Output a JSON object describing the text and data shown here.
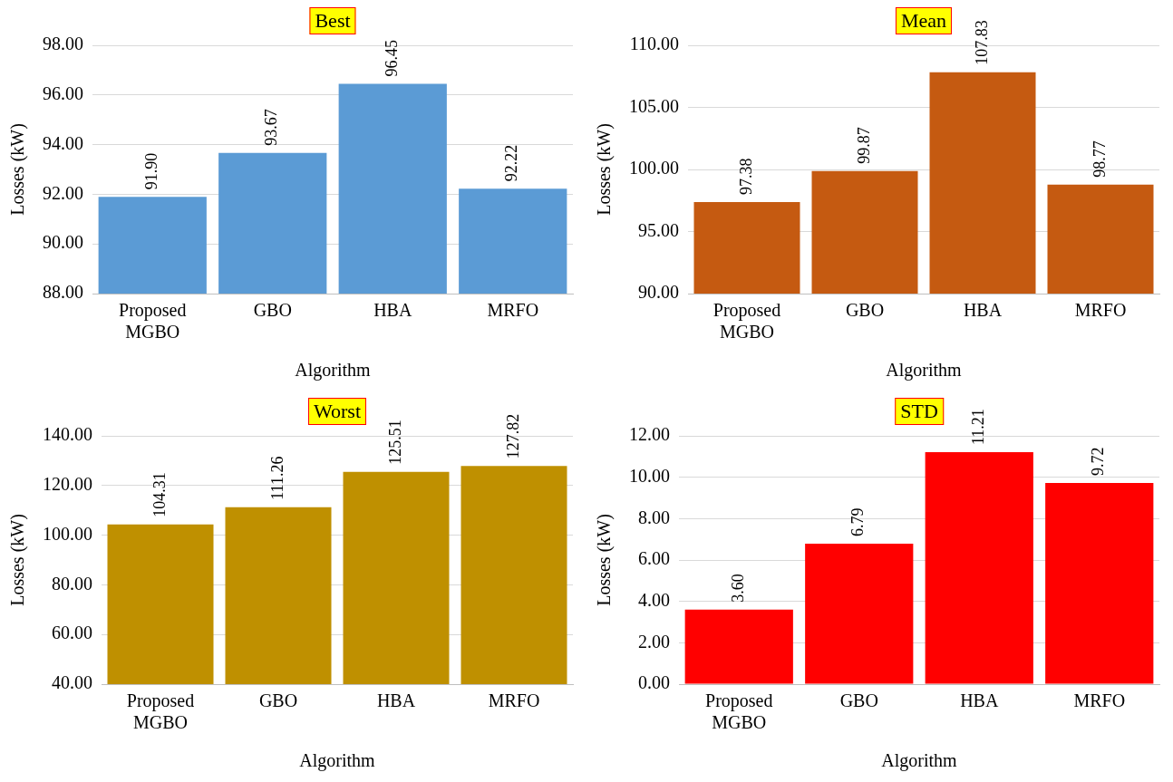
{
  "chart_data": [
    {
      "type": "bar",
      "title": "Best",
      "xlabel": "Algorithm",
      "ylabel": "Losses (kW)",
      "categories": [
        "Proposed MGBO",
        "GBO",
        "HBA",
        "MRFO"
      ],
      "values": [
        91.9,
        93.67,
        96.45,
        92.22
      ],
      "value_labels": [
        "91.90",
        "93.67",
        "96.45",
        "92.22"
      ],
      "color": "#5b9bd5",
      "ylim": [
        88,
        98
      ],
      "yticks": [
        {
          "value": 88,
          "label": "88.00"
        },
        {
          "value": 90,
          "label": "90.00"
        },
        {
          "value": 92,
          "label": "92.00"
        },
        {
          "value": 94,
          "label": "94.00"
        },
        {
          "value": 96,
          "label": "96.00"
        },
        {
          "value": 98,
          "label": "98.00"
        }
      ],
      "grid": "y",
      "legend": false
    },
    {
      "type": "bar",
      "title": "Mean",
      "xlabel": "Algorithm",
      "ylabel": "Losses (kW)",
      "categories": [
        "Proposed MGBO",
        "GBO",
        "HBA",
        "MRFO"
      ],
      "values": [
        97.38,
        99.87,
        107.83,
        98.77
      ],
      "value_labels": [
        "97.38",
        "99.87",
        "107.83",
        "98.77"
      ],
      "color": "#c55a11",
      "ylim": [
        90,
        110
      ],
      "yticks": [
        {
          "value": 90,
          "label": "90.00"
        },
        {
          "value": 95,
          "label": "95.00"
        },
        {
          "value": 100,
          "label": "100.00"
        },
        {
          "value": 105,
          "label": "105.00"
        },
        {
          "value": 110,
          "label": "110.00"
        }
      ],
      "grid": "y",
      "legend": false
    },
    {
      "type": "bar",
      "title": "Worst",
      "xlabel": "Algorithm",
      "ylabel": "Losses (kW)",
      "categories": [
        "Proposed MGBO",
        "GBO",
        "HBA",
        "MRFO"
      ],
      "values": [
        104.31,
        111.26,
        125.51,
        127.82
      ],
      "value_labels": [
        "104.31",
        "111.26",
        "125.51",
        "127.82"
      ],
      "color": "#bf9000",
      "ylim": [
        40,
        140
      ],
      "yticks": [
        {
          "value": 40,
          "label": "40.00"
        },
        {
          "value": 60,
          "label": "60.00"
        },
        {
          "value": 80,
          "label": "80.00"
        },
        {
          "value": 100,
          "label": "100.00"
        },
        {
          "value": 120,
          "label": "120.00"
        },
        {
          "value": 140,
          "label": "140.00"
        }
      ],
      "grid": "y",
      "legend": false
    },
    {
      "type": "bar",
      "title": "STD",
      "xlabel": "Algorithm",
      "ylabel": "Losses (kW)",
      "categories": [
        "Proposed MGBO",
        "GBO",
        "HBA",
        "MRFO"
      ],
      "values": [
        3.6,
        6.79,
        11.21,
        9.72
      ],
      "value_labels": [
        "3.60",
        "6.79",
        "11.21",
        "9.72"
      ],
      "color": "#ff0000",
      "ylim": [
        0,
        12
      ],
      "yticks": [
        {
          "value": 0,
          "label": "0.00"
        },
        {
          "value": 2,
          "label": "2.00"
        },
        {
          "value": 4,
          "label": "4.00"
        },
        {
          "value": 6,
          "label": "6.00"
        },
        {
          "value": 8,
          "label": "8.00"
        },
        {
          "value": 10,
          "label": "10.00"
        },
        {
          "value": 12,
          "label": "12.00"
        }
      ],
      "grid": "y",
      "legend": false
    }
  ]
}
